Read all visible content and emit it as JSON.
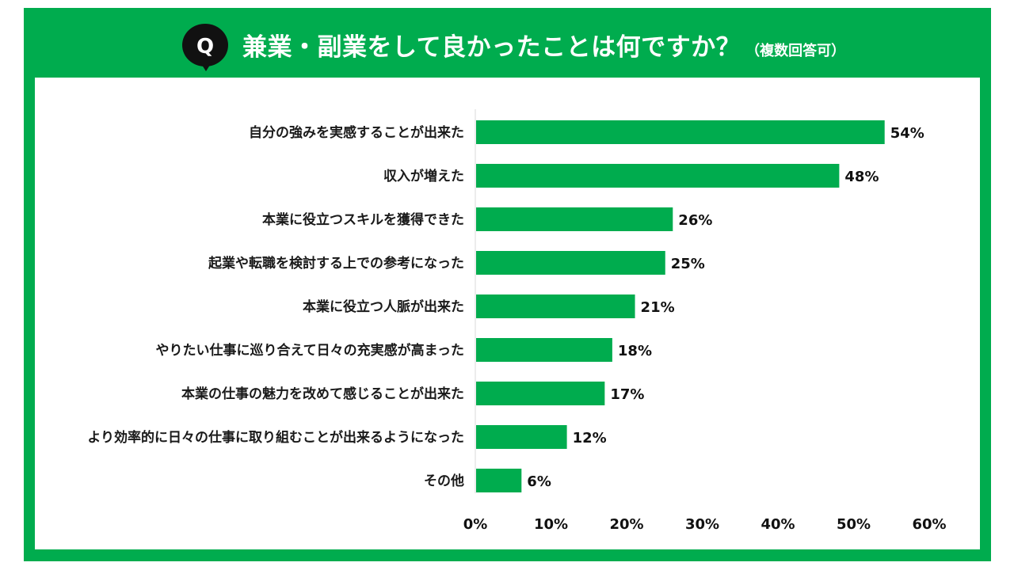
{
  "header": {
    "q_letter": "Q",
    "title": "兼業・副業をして良かったことは何ですか？",
    "subtitle": "（複数回答可）"
  },
  "colors": {
    "brand_green": "#00ac4e",
    "bar_green": "#00ac4e",
    "q_bubble": "#111111"
  },
  "icons": {
    "question_bubble": "speech-bubble-q-icon"
  },
  "chart_data": {
    "type": "bar",
    "orientation": "horizontal",
    "categories": [
      "自分の強みを実感することが出来た",
      "収入が増えた",
      "本業に役立つスキルを獲得できた",
      "起業や転職を検討する上での参考になった",
      "本業に役立つ人脈が出来た",
      "やりたい仕事に巡り合えて日々の充実感が高まった",
      "本業の仕事の魅力を改めて感じることが出来た",
      "より効率的に日々の仕事に取り組むことが出来るようになった",
      "その他"
    ],
    "values": [
      54,
      48,
      26,
      25,
      21,
      18,
      17,
      12,
      6
    ],
    "value_labels": [
      "54%",
      "48%",
      "26%",
      "25%",
      "21%",
      "18%",
      "17%",
      "12%",
      "6%"
    ],
    "xlim": [
      0,
      60
    ],
    "x_ticks": [
      0,
      10,
      20,
      30,
      40,
      50,
      60
    ],
    "x_tick_labels": [
      "0%",
      "10%",
      "20%",
      "30%",
      "40%",
      "50%",
      "60%"
    ],
    "grid": false,
    "legend": "none"
  }
}
